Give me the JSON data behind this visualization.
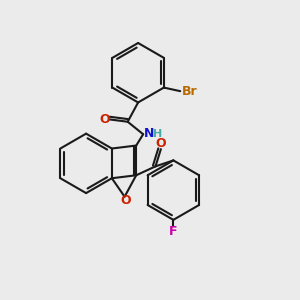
{
  "bg_color": "#ebebeb",
  "bond_color": "#1a1a1a",
  "bond_width": 1.5,
  "atoms": {
    "N": {
      "color": "#1111cc"
    },
    "O": {
      "color": "#cc2200"
    },
    "H": {
      "color": "#44aaaa"
    },
    "Br": {
      "color": "#b86a00"
    },
    "F": {
      "color": "#cc00aa"
    }
  },
  "label_fontsize": 9
}
